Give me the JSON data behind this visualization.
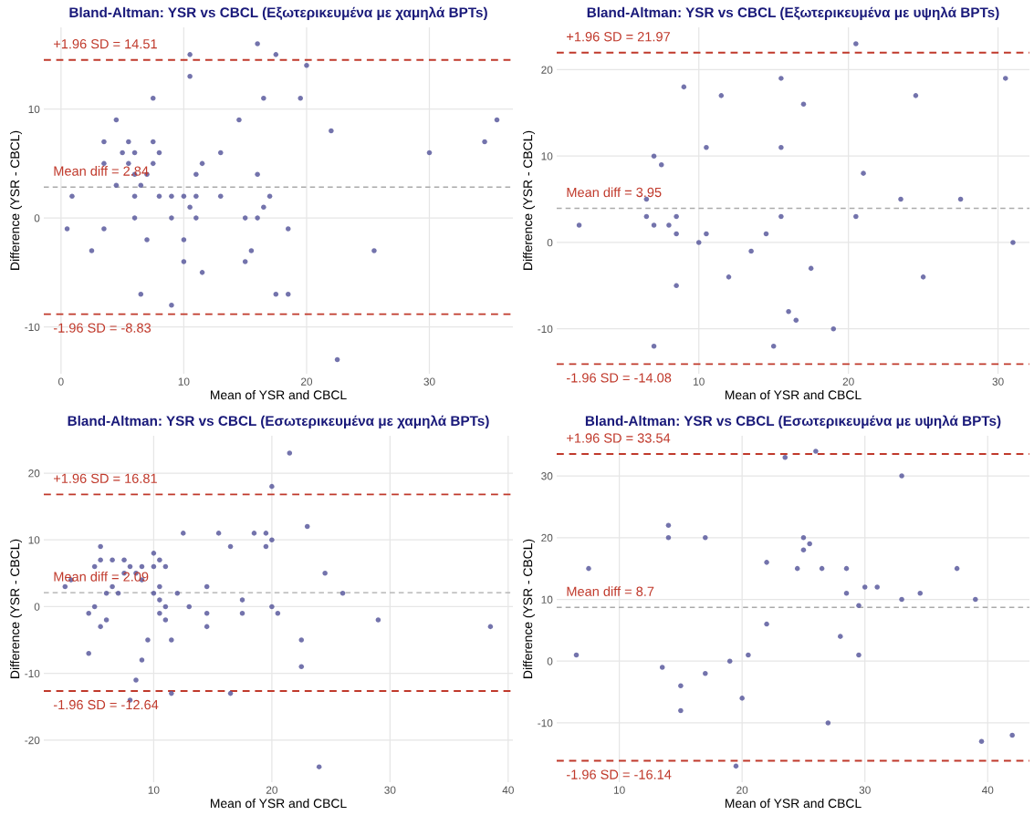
{
  "chart_data": [
    {
      "type": "scatter",
      "title": "Bland-Altman: YSR vs CBCL (Εξωτερικευμένα με χαμηλά BPTs)",
      "xlabel": "Mean of YSR and CBCL",
      "ylabel": "Difference (YSR - CBCL)",
      "xlim": [
        -1.4,
        36.8
      ],
      "ylim": [
        -14.3,
        17.5
      ],
      "xticks": [
        0,
        10,
        20,
        30
      ],
      "yticks": [
        -10,
        0,
        10
      ],
      "grid": true,
      "marker": "circle",
      "series": [
        {
          "color": "#5a5a9e",
          "x": [
            0.5,
            0.9,
            2.5,
            3.5,
            3.5,
            3.5,
            4.5,
            4.5,
            5,
            5.5,
            5.5,
            6,
            6,
            6,
            6,
            6.5,
            6.5,
            7,
            7,
            7.5,
            7.5,
            7.5,
            8,
            8,
            9,
            9,
            9,
            10,
            10,
            10,
            10.5,
            10.5,
            10.5,
            11,
            11,
            11,
            11.5,
            11.5,
            13,
            13,
            14.5,
            15,
            15,
            15.5,
            16,
            16,
            16,
            16.5,
            16.5,
            17,
            17.5,
            17.5,
            18.5,
            18.5,
            19.5,
            20,
            22,
            22.5,
            25.5,
            30,
            34.5,
            35.5
          ],
          "values": [
            -1,
            2,
            -3,
            7,
            5,
            -1,
            9,
            3,
            6,
            7,
            5,
            6,
            4,
            2,
            0,
            3,
            -7,
            -2,
            4,
            11,
            7,
            5,
            6,
            2,
            2,
            0,
            -8,
            2,
            -2,
            -4,
            15,
            13,
            1,
            4,
            2,
            0,
            5,
            -5,
            6,
            2,
            9,
            0,
            -4,
            -3,
            16,
            4,
            0,
            11,
            1,
            2,
            15,
            -7,
            -1,
            -7,
            11,
            14,
            8,
            -13,
            -3,
            6,
            7,
            9
          ]
        }
      ],
      "ref_lines": [
        {
          "axis": "y",
          "value": 14.51,
          "label": "+1.96 SD = 14.51",
          "color": "#c0392b",
          "line_style": "dashed"
        },
        {
          "axis": "y",
          "value": 2.84,
          "label": "Mean diff = 2.84",
          "color": "#aaaaaa",
          "line_style": "dashed"
        },
        {
          "axis": "y",
          "value": -8.83,
          "label": "-1.96 SD = -8.83",
          "color": "#c0392b",
          "line_style": "dashed"
        }
      ]
    },
    {
      "type": "scatter",
      "title": "Bland-Altman: YSR vs CBCL (Εξωτερικευμένα με υψηλά BPTs)",
      "xlabel": "Mean of YSR and CBCL",
      "ylabel": "Difference (YSR - CBCL)",
      "xlim": [
        0.5,
        32.1
      ],
      "ylim": [
        -15.2,
        24.9
      ],
      "xticks": [
        10,
        20,
        30
      ],
      "yticks": [
        -10,
        0,
        10,
        20
      ],
      "grid": true,
      "marker": "circle",
      "series": [
        {
          "color": "#5a5a9e",
          "x": [
            2,
            6.5,
            6.5,
            7,
            7,
            7,
            7.5,
            8,
            8.5,
            8.5,
            8.5,
            9,
            10,
            10.5,
            10.5,
            11.5,
            12,
            13.5,
            14.5,
            15,
            15.5,
            15.5,
            15.5,
            16,
            16.5,
            17,
            17.5,
            19,
            20.5,
            20.5,
            21,
            23.5,
            24.5,
            25,
            27.5,
            30.5,
            31
          ],
          "values": [
            2,
            5,
            3,
            10,
            2,
            -12,
            9,
            2,
            3,
            1,
            -5,
            18,
            0,
            11,
            1,
            17,
            -4,
            -1,
            1,
            -12,
            19,
            11,
            3,
            -8,
            -9,
            16,
            -3,
            -10,
            23,
            3,
            8,
            5,
            17,
            -4,
            5,
            19,
            0
          ]
        }
      ],
      "ref_lines": [
        {
          "axis": "y",
          "value": 21.97,
          "label": "+1.96 SD = 21.97",
          "color": "#c0392b",
          "line_style": "dashed"
        },
        {
          "axis": "y",
          "value": 3.95,
          "label": "Mean diff = 3.95",
          "color": "#aaaaaa",
          "line_style": "dashed"
        },
        {
          "axis": "y",
          "value": -14.08,
          "label": "-1.96 SD = -14.08",
          "color": "#c0392b",
          "line_style": "dashed"
        }
      ]
    },
    {
      "type": "scatter",
      "title": "Bland-Altman: YSR vs CBCL (Εσωτερικευμένα με χαμηλά BPTs)",
      "xlabel": "Mean of YSR and CBCL",
      "ylabel": "Difference (YSR - CBCL)",
      "xlim": [
        0.7,
        40.4
      ],
      "ylim": [
        -26.3,
        25.6
      ],
      "xticks": [
        10,
        20,
        30,
        40
      ],
      "yticks": [
        -20,
        -10,
        0,
        10,
        20
      ],
      "grid": true,
      "marker": "circle",
      "series": [
        {
          "color": "#5a5a9e",
          "x": [
            2.5,
            3,
            4.5,
            4.5,
            5,
            5,
            5.5,
            5.5,
            5.5,
            6,
            6,
            6.5,
            6.5,
            7,
            7.5,
            7.5,
            8,
            8,
            8.5,
            8.5,
            9,
            9,
            9,
            9.5,
            10,
            10,
            10,
            10.5,
            10.5,
            10.5,
            10.5,
            11,
            11,
            11,
            11.5,
            11.5,
            12,
            12.5,
            13,
            14.5,
            14.5,
            14.5,
            15.5,
            16.5,
            16.5,
            17.5,
            17.5,
            18.5,
            19.5,
            19.5,
            20,
            20,
            20,
            20.5,
            21.5,
            22.5,
            22.5,
            23,
            24,
            24.5,
            26,
            29,
            38.5
          ],
          "values": [
            3,
            4,
            -1,
            -7,
            6,
            0,
            9,
            7,
            -3,
            2,
            -2,
            7,
            3,
            2,
            7,
            5,
            6,
            -14,
            5,
            -11,
            6,
            4,
            -8,
            -5,
            8,
            6,
            2,
            7,
            3,
            1,
            -1,
            6,
            0,
            -2,
            -5,
            -13,
            2,
            11,
            0,
            3,
            -1,
            -3,
            11,
            9,
            -13,
            1,
            -1,
            11,
            11,
            9,
            18,
            10,
            0,
            -1,
            23,
            -5,
            -9,
            12,
            -24,
            5,
            2,
            -2,
            -3
          ]
        }
      ],
      "ref_lines": [
        {
          "axis": "y",
          "value": 16.81,
          "label": "+1.96 SD = 16.81",
          "color": "#c0392b",
          "line_style": "dashed"
        },
        {
          "axis": "y",
          "value": 2.09,
          "label": "Mean diff = 2.09",
          "color": "#aaaaaa",
          "line_style": "dashed"
        },
        {
          "axis": "y",
          "value": -12.64,
          "label": "-1.96 SD = -12.64",
          "color": "#c0392b",
          "line_style": "dashed"
        }
      ]
    },
    {
      "type": "scatter",
      "title": "Bland-Altman: YSR vs CBCL (Εσωτερικευμένα με υψηλά BPTs)",
      "xlabel": "Mean of YSR and CBCL",
      "ylabel": "Difference (YSR - CBCL)",
      "xlim": [
        4.9,
        43.4
      ],
      "ylim": [
        -19.6,
        36.5
      ],
      "xticks": [
        10,
        20,
        30,
        40
      ],
      "yticks": [
        -10,
        0,
        10,
        20,
        30
      ],
      "grid": true,
      "marker": "circle",
      "series": [
        {
          "color": "#5a5a9e",
          "x": [
            6.5,
            7.5,
            13.5,
            14,
            14,
            15,
            15,
            17,
            17,
            19,
            19.5,
            20,
            20.5,
            22,
            22,
            23.5,
            24.5,
            25,
            25,
            25.5,
            26,
            26.5,
            27,
            28,
            28.5,
            28.5,
            29.5,
            29.5,
            30,
            31,
            33,
            33,
            34.5,
            37.5,
            39,
            39.5,
            42
          ],
          "values": [
            1,
            15,
            -1,
            22,
            20,
            -4,
            -8,
            20,
            -2,
            0,
            -17,
            -6,
            1,
            16,
            6,
            33,
            15,
            20,
            18,
            19,
            34,
            15,
            -10,
            4,
            15,
            11,
            9,
            1,
            12,
            12,
            30,
            10,
            11,
            15,
            10,
            -13,
            -12
          ]
        }
      ],
      "ref_lines": [
        {
          "axis": "y",
          "value": 33.54,
          "label": "+1.96 SD = 33.54",
          "color": "#c0392b",
          "line_style": "dashed"
        },
        {
          "axis": "y",
          "value": 8.7,
          "label": "Mean diff = 8.7",
          "color": "#aaaaaa",
          "line_style": "dashed"
        },
        {
          "axis": "y",
          "value": -16.14,
          "label": "-1.96 SD = -16.14",
          "color": "#c0392b",
          "line_style": "dashed"
        }
      ]
    }
  ]
}
